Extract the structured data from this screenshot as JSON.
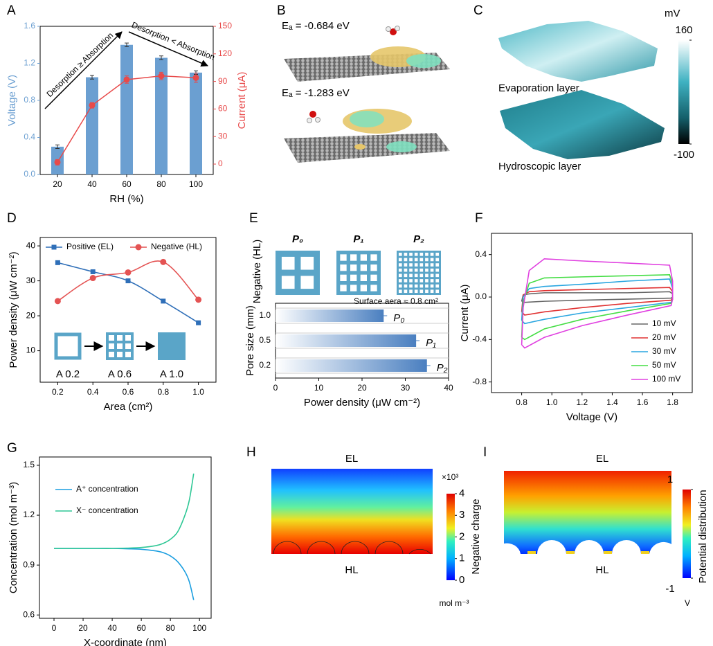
{
  "chart_data": [
    {
      "type": "bar",
      "label": "A",
      "xlabel": "RH (%)",
      "ylabel": "Voltage (V)",
      "y2label": "Current (μA)",
      "categories": [
        "20",
        "40",
        "60",
        "80",
        "100"
      ],
      "series": [
        {
          "name": "Voltage",
          "type": "bar",
          "color": "#6b9fd1",
          "values": [
            0.3,
            1.05,
            1.4,
            1.26,
            1.1
          ],
          "errors": [
            0.02,
            0.02,
            0.02,
            0.02,
            0.02
          ]
        },
        {
          "name": "Current",
          "type": "line",
          "axis": "y2",
          "color": "#e84a4a",
          "values": [
            2,
            64,
            92,
            96,
            94
          ],
          "errors": [
            3,
            3,
            4,
            4,
            5
          ]
        }
      ],
      "ylim": [
        0,
        1.6
      ],
      "yticks": [
        {
          "value": 0,
          "label": "0.0"
        },
        0.4,
        0.8,
        1.2,
        1.6
      ],
      "y2lim": [
        -11.3,
        150
      ],
      "y2ticks": [
        0,
        30,
        60,
        90,
        120,
        150
      ],
      "annotations": [
        "Desorption ≥ Absorption",
        "Desorption < Absorption"
      ]
    },
    {
      "type": "line",
      "label": "D",
      "xlabel": "Area (cm²)",
      "ylabel": "Power density (μW cm⁻²)",
      "x": [
        0.2,
        0.4,
        0.6,
        0.8,
        1.0
      ],
      "series": [
        {
          "name": "Positive (EL)",
          "color": "#2f6fb8",
          "marker": "square",
          "values": [
            35.2,
            32.6,
            30,
            24.2,
            18
          ]
        },
        {
          "name": "Negative (HL)",
          "color": "#e45353",
          "marker": "circle",
          "values": [
            24.2,
            30.8,
            32.4,
            35.4,
            24.6
          ]
        }
      ],
      "xlim": [
        0.1,
        1.1
      ],
      "xticks": [
        0.2,
        0.4,
        0.6,
        0.8,
        {
          "value": 1,
          "label": "1.0"
        }
      ],
      "ylim": [
        1,
        42.4
      ],
      "yticks": [
        10,
        20,
        30,
        40
      ],
      "legend": "upper left",
      "inset_labels": [
        "A 0.2",
        "A 0.6",
        "A 1.0"
      ]
    },
    {
      "type": "hbar",
      "label": "E",
      "xlabel": "Power density (μW cm⁻²)",
      "ylabel": "Pore size (mm)",
      "group_label": "Negative (HL)",
      "icons": [
        "P₀",
        "P₁",
        "P₂"
      ],
      "note": "Surface aera ≈ 0.8 cm²",
      "categories": [
        "1.0",
        "0.5",
        "0.2"
      ],
      "values": [
        25,
        32.5,
        35
      ],
      "errors": [
        0.8,
        0.8,
        0.8
      ],
      "bar_labels": [
        "P₀",
        "P₁",
        "P₂"
      ],
      "color": "#4a7fc0",
      "xlim": [
        0,
        40
      ],
      "xticks": [
        0,
        10,
        20,
        30,
        40
      ]
    },
    {
      "type": "line",
      "label": "F",
      "xlabel": "Voltage (V)",
      "ylabel": "Current (μA)",
      "x": [
        0.8,
        0.81,
        0.85,
        0.95,
        1.2,
        1.5,
        1.78,
        1.8,
        1.8,
        1.79,
        1.5,
        1.2,
        0.95,
        0.82,
        0.8
      ],
      "series": [
        {
          "name": "10 mV",
          "color": "#666666",
          "values": [
            -0.04,
            0.02,
            0.03,
            0.04,
            0.04,
            0.04,
            0.05,
            0.03,
            0.0,
            -0.01,
            -0.02,
            -0.03,
            -0.04,
            -0.05,
            -0.04
          ]
        },
        {
          "name": "20 mV",
          "color": "#e03030",
          "values": [
            -0.14,
            0.02,
            0.05,
            0.06,
            0.07,
            0.08,
            0.09,
            0.05,
            -0.01,
            -0.03,
            -0.06,
            -0.1,
            -0.14,
            -0.17,
            -0.14
          ]
        },
        {
          "name": "30 mV",
          "color": "#2aa6e0",
          "values": [
            -0.22,
            0.0,
            0.08,
            0.1,
            0.12,
            0.15,
            0.17,
            0.08,
            -0.02,
            -0.05,
            -0.1,
            -0.15,
            -0.21,
            -0.25,
            -0.22
          ]
        },
        {
          "name": "50 mV",
          "color": "#44dd44",
          "values": [
            -0.38,
            -0.05,
            0.13,
            0.18,
            0.19,
            0.2,
            0.21,
            0.12,
            -0.02,
            -0.06,
            -0.13,
            -0.21,
            -0.3,
            -0.4,
            -0.38
          ]
        },
        {
          "name": "100 mV",
          "color": "#e040e0",
          "values": [
            -0.45,
            -0.1,
            0.25,
            0.36,
            0.34,
            0.32,
            0.3,
            0.15,
            -0.02,
            -0.08,
            -0.17,
            -0.27,
            -0.38,
            -0.48,
            -0.45
          ]
        }
      ],
      "xlim": [
        0.6,
        1.93
      ],
      "xticks": [
        0.8,
        {
          "value": 1,
          "label": "1.0"
        },
        1.2,
        1.4,
        1.6,
        1.8
      ],
      "ylim": [
        -0.9,
        0.6
      ],
      "yticks": [
        -0.8,
        -0.4,
        {
          "value": 0,
          "label": "0.0"
        },
        0.4
      ],
      "legend": "lower right"
    },
    {
      "type": "line",
      "label": "G",
      "xlabel": "X-coordinate (nm)",
      "ylabel": "Concentration (mol m⁻³)",
      "x": [
        0,
        10,
        20,
        30,
        40,
        50,
        60,
        70,
        75,
        80,
        85,
        90,
        93,
        96
      ],
      "series": [
        {
          "name": "A⁺ concentration",
          "color": "#1a9ee0",
          "values": [
            1,
            1,
            1,
            1,
            1,
            0.998,
            0.995,
            0.985,
            0.975,
            0.955,
            0.92,
            0.86,
            0.8,
            0.69
          ]
        },
        {
          "name": "X⁻ concentration",
          "color": "#2ec795",
          "values": [
            1,
            1,
            1,
            1,
            1,
            1.002,
            1.006,
            1.017,
            1.03,
            1.055,
            1.1,
            1.2,
            1.29,
            1.45
          ]
        }
      ],
      "xlim": [
        -10,
        108
      ],
      "xticks": [
        0,
        20,
        40,
        60,
        80,
        100
      ],
      "ylim": [
        0.58,
        1.55
      ],
      "yticks": [
        0.6,
        0.9,
        1.2,
        1.5
      ],
      "legend": "upper left"
    }
  ],
  "panels": {
    "B": {
      "label": "B",
      "energies": [
        "Eₐ = -0.684 eV",
        "Eₐ = -1.283 eV"
      ]
    },
    "C": {
      "label": "C",
      "unit": "mV",
      "colorbar_lim": [
        -100,
        160
      ],
      "colorbar_ticks": [
        160,
        -100
      ],
      "layers": [
        "Evaporation layer",
        "Hydroscopic layer"
      ]
    },
    "H": {
      "label": "H",
      "top": "EL",
      "bottom": "HL",
      "multiplier": "×10³",
      "colorbar_title": "Negative charge",
      "unit": "mol m⁻³",
      "colorbar_lim": [
        0,
        4
      ],
      "colorbar_ticks": [
        0,
        1,
        2,
        3,
        4
      ]
    },
    "I": {
      "label": "I",
      "top": "EL",
      "bottom": "HL",
      "colorbar_title": "Potential distribution",
      "unit": "V",
      "colorbar_lim": [
        -1,
        1
      ],
      "colorbar_ticks": [
        1,
        -1
      ]
    }
  }
}
